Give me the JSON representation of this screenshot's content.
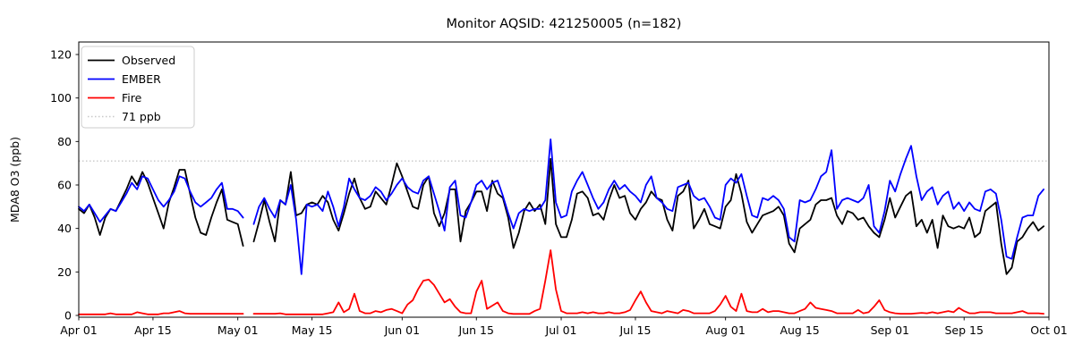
{
  "title": "Monitor AQSID: 421250005 (n=182)",
  "chart_data": {
    "type": "line",
    "title": "Monitor AQSID: 421250005 (n=182)",
    "xlabel": "",
    "ylabel": "MDA8 O3 (ppb)",
    "grid": false,
    "ylim": [
      0,
      126
    ],
    "y_axis": {
      "ticks": [
        0,
        20,
        40,
        60,
        80,
        100,
        120
      ]
    },
    "x_axis": {
      "tick_labels": [
        "Apr 01",
        "Apr 15",
        "May 01",
        "May 15",
        "Jun 01",
        "Jun 15",
        "Jul 01",
        "Jul 15",
        "Aug 01",
        "Aug 15",
        "Sep 01",
        "Sep 15",
        "Oct 01"
      ],
      "tick_positions_days": [
        0,
        14,
        30,
        44,
        61,
        75,
        91,
        105,
        122,
        136,
        153,
        167,
        183
      ],
      "range_days": [
        0,
        183
      ],
      "start_label": "Apr 01",
      "end_label": "Oct 01",
      "unit": "day"
    },
    "threshold": {
      "label": "71 ppb",
      "value": 71,
      "color": "#c8c8c8",
      "style": "dotted"
    },
    "missing_data_note": "single gap day (early May) shown as break in all lines",
    "legend": {
      "position": "upper-left",
      "items": [
        {
          "label": "Observed",
          "color": "#000000",
          "style": "solid"
        },
        {
          "label": "EMBER",
          "color": "#0000ff",
          "style": "solid"
        },
        {
          "label": "Fire",
          "color": "#ff0000",
          "style": "solid"
        },
        {
          "label": "71 ppb",
          "color": "#c8c8c8",
          "style": "dotted"
        }
      ]
    },
    "series": [
      {
        "name": "Observed",
        "color": "#000000",
        "values": [
          49,
          47,
          51,
          45,
          37,
          45,
          49,
          48,
          53,
          58,
          64,
          60,
          66,
          61,
          54,
          47,
          40,
          52,
          59,
          67,
          67,
          56,
          45,
          38,
          37,
          45,
          52,
          58,
          44,
          43,
          42,
          32,
          null,
          34,
          43,
          53,
          43,
          34,
          53,
          51,
          66,
          46,
          47,
          51,
          52,
          51,
          55,
          52,
          44,
          39,
          47,
          56,
          63,
          54,
          49,
          50,
          57,
          54,
          51,
          60,
          70,
          64,
          57,
          50,
          49,
          60,
          64,
          47,
          41,
          47,
          58,
          58,
          34,
          48,
          52,
          57,
          57,
          48,
          62,
          56,
          54,
          45,
          31,
          38,
          48,
          52,
          48,
          51,
          42,
          72,
          42,
          36,
          36,
          44,
          56,
          57,
          54,
          46,
          47,
          44,
          53,
          60,
          54,
          55,
          47,
          44,
          49,
          52,
          57,
          54,
          53,
          44,
          39,
          55,
          57,
          62,
          40,
          44,
          49,
          42,
          41,
          40,
          50,
          53,
          65,
          56,
          43,
          38,
          42,
          46,
          47,
          48,
          50,
          46,
          33,
          29,
          40,
          42,
          44,
          51,
          53,
          53,
          54,
          46,
          42,
          48,
          47,
          44,
          45,
          41,
          38,
          36,
          44,
          54,
          45,
          50,
          55,
          57,
          41,
          44,
          38,
          44,
          31,
          46,
          41,
          40,
          41,
          40,
          45,
          36,
          38,
          48,
          50,
          52,
          33,
          19,
          22,
          34,
          36,
          40,
          43,
          39,
          41
        ]
      },
      {
        "name": "EMBER",
        "color": "#0000ff",
        "values": [
          50,
          48,
          51,
          47,
          43,
          46,
          49,
          48,
          52,
          56,
          61,
          58,
          64,
          63,
          58,
          53,
          50,
          53,
          57,
          64,
          63,
          57,
          52,
          50,
          52,
          54,
          58,
          61,
          49,
          49,
          48,
          45,
          null,
          42,
          50,
          54,
          49,
          45,
          53,
          51,
          60,
          44,
          19,
          51,
          50,
          51,
          48,
          57,
          50,
          41,
          50,
          63,
          58,
          54,
          53,
          55,
          59,
          57,
          53,
          56,
          60,
          63,
          59,
          57,
          56,
          62,
          64,
          56,
          48,
          39,
          59,
          62,
          46,
          45,
          52,
          60,
          62,
          58,
          61,
          62,
          55,
          47,
          40,
          47,
          49,
          48,
          49,
          49,
          53,
          81,
          52,
          45,
          46,
          57,
          62,
          66,
          60,
          54,
          49,
          52,
          58,
          62,
          58,
          60,
          57,
          55,
          52,
          60,
          64,
          54,
          52,
          49,
          48,
          59,
          60,
          61,
          55,
          53,
          54,
          50,
          45,
          44,
          60,
          63,
          61,
          65,
          55,
          46,
          45,
          54,
          53,
          55,
          53,
          49,
          36,
          34,
          53,
          52,
          53,
          58,
          64,
          66,
          76,
          49,
          53,
          54,
          53,
          52,
          54,
          60,
          41,
          38,
          48,
          62,
          57,
          65,
          72,
          78,
          64,
          53,
          57,
          59,
          51,
          55,
          57,
          49,
          52,
          48,
          52,
          49,
          48,
          57,
          58,
          56,
          44,
          27,
          26,
          36,
          45,
          46,
          46,
          55,
          58
        ]
      },
      {
        "name": "Fire",
        "color": "#ff0000",
        "values": [
          0.5,
          0.5,
          0.5,
          0.5,
          0.5,
          0.5,
          1,
          0.5,
          0.5,
          0.5,
          0.5,
          1.5,
          1,
          0.5,
          0.5,
          0.5,
          1,
          1,
          1.5,
          2,
          1,
          0.8,
          0.8,
          0.8,
          0.8,
          0.8,
          0.8,
          0.8,
          0.8,
          0.8,
          0.8,
          0.8,
          null,
          0.8,
          0.8,
          0.8,
          0.8,
          0.8,
          1,
          0.5,
          0.5,
          0.5,
          0.5,
          0.5,
          0.5,
          0.5,
          0.5,
          1,
          1.5,
          6,
          1.5,
          3,
          10,
          2,
          1,
          1,
          2,
          1.5,
          2.5,
          3,
          2,
          1,
          5,
          7,
          12,
          16,
          16.5,
          14,
          10,
          6,
          7.5,
          4,
          1.5,
          1,
          1,
          11,
          16,
          3,
          4.5,
          6,
          2,
          1,
          0.7,
          0.7,
          0.7,
          0.7,
          2,
          3,
          16,
          30,
          12,
          2,
          1,
          1,
          1,
          1.5,
          1,
          1.5,
          1,
          1,
          1.5,
          1,
          1,
          1.5,
          2.5,
          7,
          11,
          6,
          2,
          1.5,
          1,
          2,
          1.5,
          1,
          2.5,
          2,
          1,
          1,
          1,
          1,
          2,
          5,
          9,
          4,
          2,
          10,
          2,
          1.5,
          1.5,
          3,
          1.5,
          2,
          2,
          1.5,
          1,
          1,
          2,
          3,
          6,
          3.5,
          3,
          2.5,
          2,
          1,
          1,
          1,
          1,
          2.5,
          1,
          1.5,
          4,
          7,
          2.5,
          1.5,
          1,
          0.8,
          0.8,
          0.8,
          1,
          1.2,
          1,
          1.5,
          1,
          1.5,
          2,
          1.5,
          3.5,
          2,
          1,
          1,
          1.5,
          1.5,
          1.5,
          1,
          1,
          1,
          1,
          1.5,
          2,
          1,
          1,
          1,
          0.8
        ]
      }
    ]
  }
}
